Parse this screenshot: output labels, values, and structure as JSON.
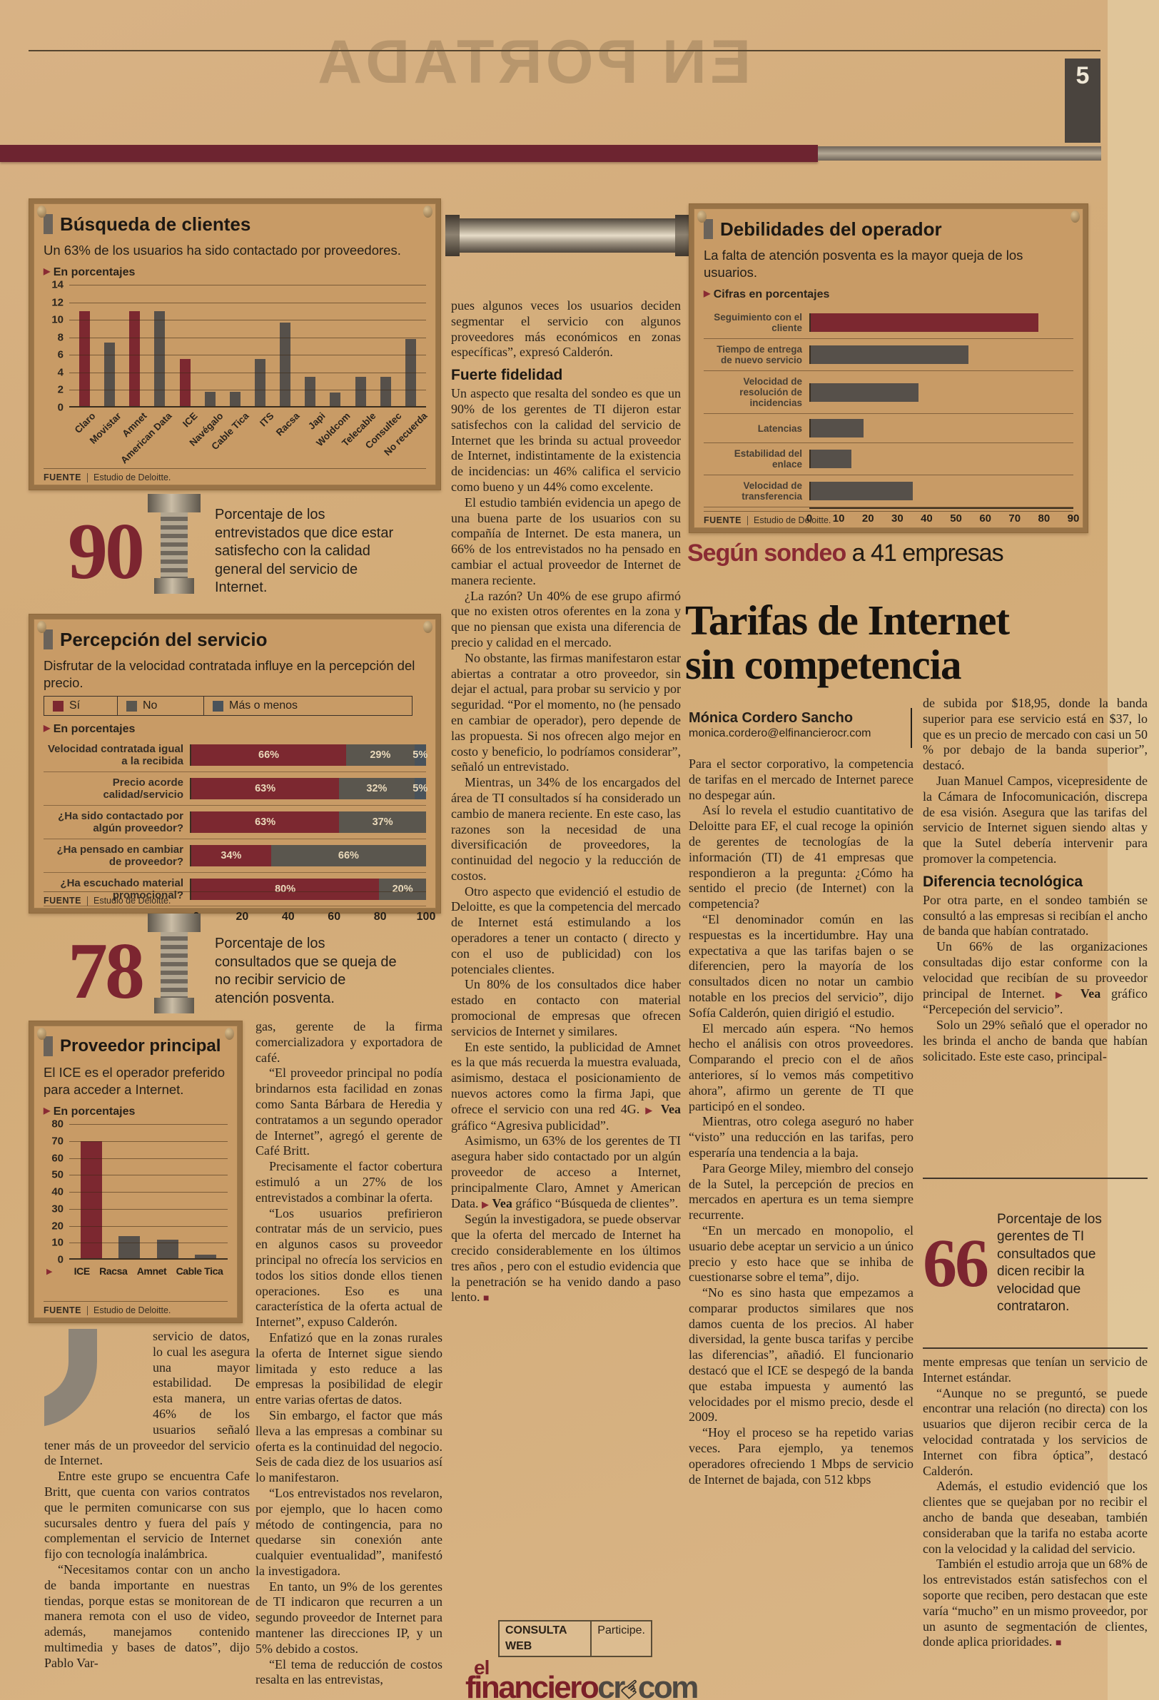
{
  "page": {
    "number": "5",
    "ghost_title": "EN PORTADA"
  },
  "labels": {
    "fuente": "FUENTE"
  },
  "colors": {
    "accent": "#7c2830",
    "bar_gray": "#56504a",
    "slate": "#49525a",
    "panel_bg": "#c89b66",
    "band_maroon": "#6d2430"
  },
  "chart_data": [
    {
      "id": "busqueda",
      "type": "bar",
      "title": "Búsqueda de clientes",
      "subtitle": "Un 63% de los usuarios ha sido contactado por proveedores.",
      "unit_label": "En porcentajes",
      "source": "Estudio de Deloitte.",
      "categories": [
        "Claro",
        "Movistar",
        "Amnet",
        "American Data",
        "ICE",
        "Navégalo",
        "Cable Tica",
        "ITS",
        "Racsa",
        "Japi",
        "Woldcom",
        "Telecable",
        "Consultec",
        "No recuerda"
      ],
      "values": [
        11,
        7.4,
        11,
        11,
        5.5,
        1.8,
        1.8,
        5.5,
        9.7,
        3.5,
        1.7,
        3.5,
        3.5,
        7.8
      ],
      "bar_colors": [
        "accent",
        "gray",
        "accent",
        "gray",
        "accent",
        "gray",
        "gray",
        "gray",
        "gray",
        "gray",
        "gray",
        "gray",
        "gray",
        "gray"
      ],
      "ylim": [
        0,
        14
      ],
      "ystep": 2,
      "grid": true,
      "legend_position": "none"
    },
    {
      "id": "debilidades",
      "type": "bar",
      "orientation": "horizontal",
      "title": "Debilidades del operador",
      "subtitle": "La falta de atención posventa es la mayor queja de los usuarios.",
      "unit_label": "Cifras en porcentajes",
      "source": "Estudio de Deloitte.",
      "categories": [
        "Seguimiento con el cliente",
        "Tiempo de entrega de nuevo servicio",
        "Velocidad de resolución de incidencias",
        "Latencias",
        "Estabilidad del enlace",
        "Velocidad de transferencia"
      ],
      "values": [
        78,
        54,
        37,
        18,
        14,
        35
      ],
      "bar_colors": [
        "accent",
        "gray",
        "gray",
        "gray",
        "gray",
        "gray"
      ],
      "xlim": [
        0,
        90
      ],
      "xstep": 10,
      "grid": true,
      "legend_position": "none"
    },
    {
      "id": "percepcion",
      "type": "bar",
      "orientation": "horizontal-stacked",
      "title": "Percepción del servicio",
      "subtitle": "Disfrutar de la velocidad contratada influye en la percepción del precio.",
      "unit_label": "En porcentajes",
      "source": "Estudio de Deloitte.",
      "legend": [
        {
          "label": "Sí",
          "color": "#7c2830"
        },
        {
          "label": "No",
          "color": "#5a564e"
        },
        {
          "label": "Más o menos",
          "color": "#49525a"
        }
      ],
      "categories": [
        "Velocidad contratada igual a la recibida",
        "Precio acorde calidad/servicio",
        "¿Ha sido contactado por algún proveedor?",
        "¿Ha pensado en cambiar de proveedor?",
        "¿Ha escuchado material promocional?"
      ],
      "series": [
        {
          "name": "Sí",
          "values": [
            66,
            63,
            63,
            34,
            80
          ]
        },
        {
          "name": "No",
          "values": [
            29,
            32,
            37,
            66,
            20
          ]
        },
        {
          "name": "Más o menos",
          "values": [
            5,
            5,
            0,
            0,
            0
          ]
        }
      ],
      "xlim": [
        0,
        100
      ],
      "xstep": 20,
      "legend_position": "top"
    },
    {
      "id": "proveedor",
      "type": "bar",
      "title": "Proveedor principal",
      "subtitle": "El ICE es el operador preferido para acceder a Internet.",
      "unit_label": "En porcentajes",
      "source": "Estudio de Deloitte.",
      "categories": [
        "ICE",
        "Racsa",
        "Amnet",
        "Cable Tica"
      ],
      "values": [
        70,
        14,
        12,
        3
      ],
      "bar_colors": [
        "accent",
        "gray",
        "gray",
        "gray"
      ],
      "ylim": [
        0,
        80
      ],
      "ystep": 10,
      "grid": true,
      "legend_position": "none"
    }
  ],
  "stats": [
    {
      "value": "90",
      "text": "Porcentaje de los entrevistados que dice estar satisfecho con la calidad general del servicio de Internet."
    },
    {
      "value": "78",
      "text": "Porcentaje de los consultados que se queja de no recibir servicio de atención posventa."
    },
    {
      "value": "66",
      "text": "Porcentaje de los gerentes de TI consultados que dicen recibir la velocidad que contrataron."
    }
  ],
  "headline": {
    "kicker_accent": "Según sondeo",
    "kicker_rest": " a 41 empresas",
    "title_line1": "Tarifas de Internet",
    "title_line2": "sin competencia",
    "author": "Mónica Cordero Sancho",
    "email": "monica.cordero@elfinancierocr.com"
  },
  "footer_logo": {
    "consulta": "CONSULTA WEB",
    "participe": "Participe.",
    "el": "el",
    "financiero": "financiero",
    "cr": "cr",
    "com": "com"
  },
  "columns": {
    "col1": [
      {
        "t": "pf",
        "s": "servicio de datos, lo cual les asegura una mayor estabilidad. De esta manera, un 46% de los usuarios señaló tener más de un proveedor del servicio de Internet."
      },
      {
        "t": "p",
        "s": "Entre este grupo se encuentra Cafe Britt, que cuenta con varios contratos que le permiten comunicarse con sus sucursales dentro y fuera del país y complementan el servicio de Internet fijo con tecnología inalámbrica."
      },
      {
        "t": "p",
        "s": "“Necesitamos contar con un ancho de banda importante en nuestras tiendas, porque estas se monitorean de manera remota con el uso de video, además, manejamos contenido multimedia y bases de datos”, dijo Pablo Var-"
      }
    ],
    "col2": [
      {
        "t": "pf",
        "s": "gas, gerente de la firma comercializadora y exportadora de café."
      },
      {
        "t": "p",
        "s": "“El proveedor principal no podía brindarnos esta facilidad en zonas como Santa Bárbara de Heredia y contratamos a un segundo operador de Internet”, agregó el gerente de Café Britt."
      },
      {
        "t": "p",
        "s": "Precisamente el factor cobertura estimuló a un 27% de los entrevistados a combinar la oferta."
      },
      {
        "t": "p",
        "s": "“Los usuarios prefirieron contratar más de un servicio, pues en algunos casos su proveedor principal no ofrecía los servicios en todos los sitios donde ellos tienen operaciones. Eso es una característica de la oferta actual de Internet”, expuso Calderón."
      },
      {
        "t": "p",
        "s": "Enfatizó que en la zonas rurales la oferta de Internet sigue siendo limitada y esto reduce a las empresas la posibilidad de elegir entre varias ofertas de datos."
      },
      {
        "t": "p",
        "s": "Sin embargo, el factor que más lleva a las empresas a combinar su oferta es la continuidad del negocio. Seis de cada diez de los usuarios así lo manifestaron."
      },
      {
        "t": "p",
        "s": "“Los entrevistados nos revelaron, por ejemplo, que lo hacen como método de contingencia, para no quedarse sin conexión ante cualquier eventualidad”, manifestó la investigadora."
      },
      {
        "t": "p",
        "s": "En tanto, un 9% de los gerentes de TI indicaron que recurren a un segundo proveedor de Internet para mantener las direcciones IP, y un 5% debido a costos."
      },
      {
        "t": "p",
        "s": "“El tema de reducción de costos resalta en las entrevistas,"
      }
    ],
    "col3": [
      {
        "t": "pf",
        "s": "pues algunos veces los usuarios deciden segmentar el servicio con algunos proveedores más económicos en zonas específicas”, expresó Calderón."
      },
      {
        "t": "h",
        "s": "Fuerte fidelidad"
      },
      {
        "t": "pf",
        "s": "Un aspecto que resalta del sondeo es que un 90% de los gerentes de TI dijeron estar satisfechos con la calidad del servicio de Internet que les brinda su actual proveedor de Internet, indistintamente de la existencia de incidencias: un 46% califica el servicio como bueno y un 44% como excelente."
      },
      {
        "t": "p",
        "s": "El estudio también evidencia un apego de una buena parte de los usuarios con su compañía de Internet. De esta manera, un 66% de los entrevistados no ha pensado en cambiar el actual proveedor de Internet de manera reciente."
      },
      {
        "t": "p",
        "s": "¿La razón? Un 40% de ese grupo afirmó que no existen otros oferentes en la zona y que no piensan que exista una diferencia de precio y calidad en el mercado."
      },
      {
        "t": "p",
        "s": "No obstante, las firmas manifestaron estar abiertas a contratar a otro proveedor, sin dejar el actual, para probar su servicio y por seguridad. “Por el momento, no (he pensado en cambiar de operador), pero depende de las propuesta. Si nos ofrecen algo mejor en costo y beneficio, lo podríamos considerar”, señaló un entrevistado."
      },
      {
        "t": "p",
        "s": "Mientras, un 34% de los encargados del área de TI consultados sí ha considerado un cambio de manera reciente. En este caso, las razones son la necesidad de una diversificación de proveedores, la continuidad del negocio y la reducción de costos."
      },
      {
        "t": "p",
        "s": "Otro aspecto que evidenció el estudio de Deloitte, es que la competencia del mercado de Internet está estimulando a los operadores a tener un contacto ( directo y con el uso de publicidad) con los potenciales clientes."
      },
      {
        "t": "p",
        "s": "Un 80% de los consultados dice haber estado en contacto con material promocional de empresas que ofrecen servicios de Internet y similares."
      },
      {
        "t": "p",
        "s": "En este sentido, la publicidad de Amnet es la que más recuerda la muestra evaluada, asimismo, destaca el posicionamiento de nuevos actores como la firma Japi, que ofrece el servicio con una red 4G. ▶ Vea gráfico “Agresiva publicidad”."
      },
      {
        "t": "p",
        "s": "Asimismo, un 63% de los gerentes de TI asegura haber sido contactado por un algún proveedor de acceso a Internet, principalmente Claro, Amnet y American Data. ▶ Vea gráfico “Búsqueda de clientes”."
      },
      {
        "t": "p",
        "s": "Según la investigadora, se puede observar que la oferta del mercado de Internet ha crecido considerablemente en los últimos tres años , pero con el estudio evidencia que la penetración se ha venido dando a paso lento. ■"
      }
    ],
    "col4": [
      {
        "t": "pf",
        "s": "Para el sector corporativo, la competencia de tarifas en el mercado de Internet parece no despegar aún."
      },
      {
        "t": "p",
        "s": "Así lo revela el estudio cuantitativo de Deloitte para EF, el cual recoge la opinión de gerentes de tecnologías de la información (TI) de 41 empresas que respondieron a la pregunta: ¿Cómo ha sentido el precio (de Internet) con la competencia?"
      },
      {
        "t": "p",
        "s": "“El denominador común en las respuestas es la incertidumbre. Hay una expectativa a que las tarifas bajen o se diferencien, pero la mayoría de los consultados dicen no notar un cambio notable en los precios del servicio”, dijo Sofía Calderón, quien dirigió el estudio."
      },
      {
        "t": "p",
        "s": "El mercado aún espera. “No hemos hecho el análisis con otros proveedores. Comparando el precio con el de años anteriores, sí lo vemos más competitivo ahora”, afirmo un gerente de TI que participó en el sondeo."
      },
      {
        "t": "p",
        "s": "Mientras, otro colega aseguró no haber “visto” una reducción en las tarifas, pero esperaría una tendencia a la baja."
      },
      {
        "t": "p",
        "s": "Para George Miley, miembro del consejo de la Sutel, la percepción de precios en mercados en apertura es un tema siempre recurrente."
      },
      {
        "t": "p",
        "s": "“En un mercado en monopolio, el usuario debe aceptar un servicio a un único precio y esto hace que se inhiba de cuestionarse sobre el tema”, dijo."
      },
      {
        "t": "p",
        "s": "“No es sino hasta que empezamos a comparar productos similares que nos damos cuenta de los precios. Al haber diversidad, la gente busca tarifas y percibe las diferencias”, añadió. El funcionario destacó que el ICE se despegó de la banda que estaba impuesta y aumentó las velocidades por el mismo precio, desde el 2009."
      },
      {
        "t": "p",
        "s": "“Hoy el proceso se ha repetido varias veces. Para ejemplo, ya tenemos operadores ofreciendo 1 Mbps de servicio de Internet de bajada, con 512 kbps"
      }
    ],
    "col5a": [
      {
        "t": "pf",
        "s": "de subida por $18,95, donde la banda superior para ese servicio está en $37, lo que es un precio de mercado con casi un 50 % por debajo de la banda superior”, destacó."
      },
      {
        "t": "p",
        "s": "Juan Manuel Campos, vicepresidente de la Cámara de Infocomunicación, discrepa de esa visión. Asegura que las tarifas del servicio de Internet siguen siendo altas y que la Sutel debería intervenir para promover la competencia."
      },
      {
        "t": "h",
        "s": "Diferencia tecnológica"
      },
      {
        "t": "pf",
        "s": "Por otra parte, en el sondeo también se consultó a las empresas si recibían el ancho de banda que habían contratado."
      },
      {
        "t": "p",
        "s": "Un 66% de las organizaciones consultadas dijo estar conforme con la velocidad que recibían de su proveedor principal de Internet. ▶ Vea gráfico “Percepeción del servicio”."
      },
      {
        "t": "p",
        "s": "Solo un 29% señaló que el operador no les brinda el ancho de banda que habían solicitado. Este este caso, principal-"
      }
    ],
    "col5b": [
      {
        "t": "pf",
        "s": "mente empresas que tenían un servicio de Internet estándar."
      },
      {
        "t": "p",
        "s": "“Aunque no se preguntó, se puede encontrar una relación (no directa) con los usuarios que dijeron recibir cerca de la velocidad contratada y los servicios de Internet con fibra óptica”, destacó Calderón."
      },
      {
        "t": "p",
        "s": "Además, el estudio evidenció que los clientes que se quejaban por no recibir el ancho de banda que deseaban, también consideraban que la tarifa no estaba acorte con la velocidad y la calidad del servicio."
      },
      {
        "t": "p",
        "s": "También el estudio arroja que un 68% de los entrevistados están satisfechos con el soporte que reciben, pero destacan que este varía “mucho” en un mismo proveedor, por un asunto de segmentación de clientes, donde aplica prioridades. ■"
      }
    ]
  }
}
